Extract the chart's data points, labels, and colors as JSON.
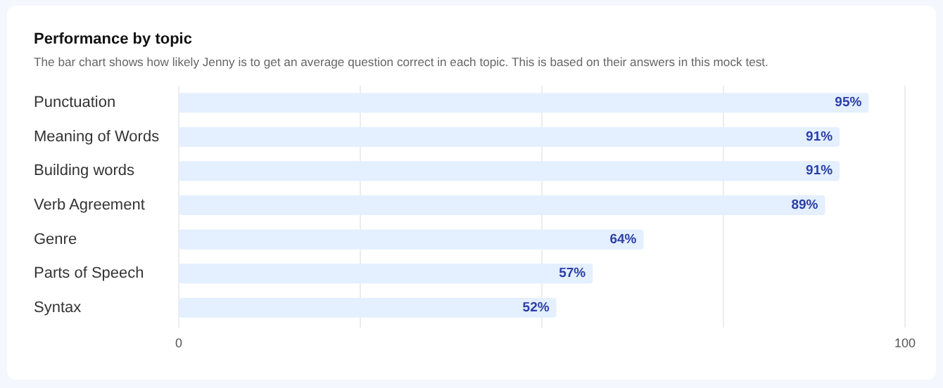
{
  "chart_data": {
    "type": "bar",
    "orientation": "horizontal",
    "title": "Performance by topic",
    "subtitle": "The bar chart shows how likely Jenny is to get an average question correct in each topic. This is based on their answers in this mock test.",
    "categories": [
      "Punctuation",
      "Meaning of Words",
      "Building words",
      "Verb Agreement",
      "Genre",
      "Parts of Speech",
      "Syntax"
    ],
    "values": [
      95,
      91,
      91,
      89,
      64,
      57,
      52
    ],
    "value_labels": [
      "95%",
      "91%",
      "91%",
      "89%",
      "64%",
      "57%",
      "52%"
    ],
    "color": "#e4efff",
    "xlim": [
      0,
      100
    ],
    "xticks": [
      0,
      {
        "value": 25,
        "label": null
      },
      {
        "value": 50,
        "label": null
      },
      {
        "value": 75,
        "label": null
      },
      100
    ],
    "grid": "x"
  }
}
